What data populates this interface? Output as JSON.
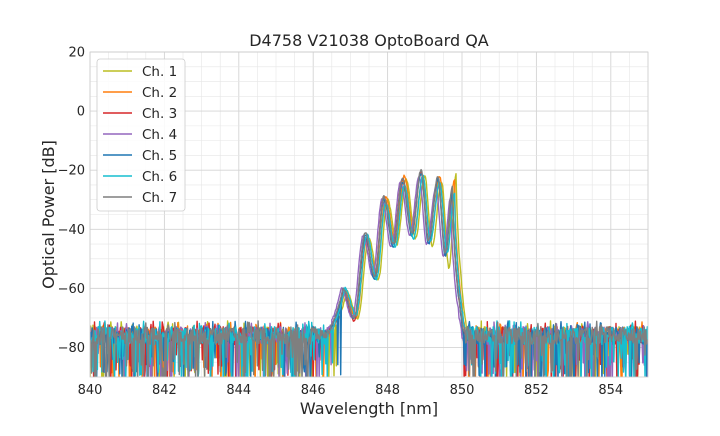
{
  "chart_data": {
    "type": "line",
    "title": "D4758 V21038 OptoBoard QA",
    "xlabel": "Wavelength [nm]",
    "ylabel": "Optical Power [dB]",
    "xlim": [
      840,
      855
    ],
    "ylim": [
      -90,
      20
    ],
    "x_ticks": [
      840,
      842,
      844,
      846,
      848,
      850,
      852,
      854
    ],
    "x_tick_labels": [
      "840",
      "842",
      "844",
      "846",
      "848",
      "850",
      "852",
      "854"
    ],
    "y_ticks": [
      20,
      0,
      -20,
      -40,
      -60,
      -80
    ],
    "y_tick_labels": [
      "20",
      "0",
      "−20",
      "−40",
      "−60",
      "−80"
    ],
    "grid": true,
    "grid_minor": true,
    "legend_position": "top-left",
    "noise_floor_db": -76,
    "series": [
      {
        "name": "Ch. 1",
        "color": "#bcbd22",
        "peaks": [
          {
            "x": 846.9,
            "y": -61
          },
          {
            "x": 847.5,
            "y": -43
          },
          {
            "x": 848.0,
            "y": -30
          },
          {
            "x": 848.5,
            "y": -23
          },
          {
            "x": 849.0,
            "y": -22
          },
          {
            "x": 849.45,
            "y": -24
          },
          {
            "x": 849.85,
            "y": -21
          }
        ],
        "dips": [
          {
            "x": 847.2,
            "y": -70
          },
          {
            "x": 847.75,
            "y": -57
          },
          {
            "x": 848.25,
            "y": -45
          },
          {
            "x": 848.75,
            "y": -43
          },
          {
            "x": 849.2,
            "y": -46
          },
          {
            "x": 849.65,
            "y": -53
          }
        ]
      },
      {
        "name": "Ch. 2",
        "color": "#ff7f0e",
        "peaks": [
          {
            "x": 846.85,
            "y": -61
          },
          {
            "x": 847.45,
            "y": -43
          },
          {
            "x": 847.95,
            "y": -29
          },
          {
            "x": 848.45,
            "y": -22
          },
          {
            "x": 848.95,
            "y": -22
          },
          {
            "x": 849.4,
            "y": -22
          },
          {
            "x": 849.8,
            "y": -23
          }
        ],
        "dips": [
          {
            "x": 847.15,
            "y": -70
          },
          {
            "x": 847.7,
            "y": -55
          },
          {
            "x": 848.2,
            "y": -44
          },
          {
            "x": 848.7,
            "y": -41
          },
          {
            "x": 849.15,
            "y": -44
          },
          {
            "x": 849.6,
            "y": -48
          }
        ]
      },
      {
        "name": "Ch. 3",
        "color": "#d62728",
        "peaks": [
          {
            "x": 846.8,
            "y": -61
          },
          {
            "x": 847.4,
            "y": -43
          },
          {
            "x": 847.9,
            "y": -29
          },
          {
            "x": 848.4,
            "y": -23
          },
          {
            "x": 848.9,
            "y": -21
          },
          {
            "x": 849.35,
            "y": -23
          },
          {
            "x": 849.75,
            "y": -26
          }
        ],
        "dips": [
          {
            "x": 847.1,
            "y": -71
          },
          {
            "x": 847.65,
            "y": -56
          },
          {
            "x": 848.15,
            "y": -44
          },
          {
            "x": 848.65,
            "y": -40
          },
          {
            "x": 849.1,
            "y": -43
          },
          {
            "x": 849.55,
            "y": -47
          }
        ]
      },
      {
        "name": "Ch. 4",
        "color": "#9467bd",
        "peaks": [
          {
            "x": 846.75,
            "y": -60
          },
          {
            "x": 847.35,
            "y": -42
          },
          {
            "x": 847.85,
            "y": -30
          },
          {
            "x": 848.35,
            "y": -24
          },
          {
            "x": 848.85,
            "y": -22
          },
          {
            "x": 849.3,
            "y": -26
          },
          {
            "x": 849.7,
            "y": -29
          }
        ],
        "dips": [
          {
            "x": 847.05,
            "y": -70
          },
          {
            "x": 847.6,
            "y": -56
          },
          {
            "x": 848.1,
            "y": -46
          },
          {
            "x": 848.6,
            "y": -42
          },
          {
            "x": 849.05,
            "y": -45
          },
          {
            "x": 849.5,
            "y": -49
          }
        ]
      },
      {
        "name": "Ch. 5",
        "color": "#1f77b4",
        "peaks": [
          {
            "x": 846.8,
            "y": -60
          },
          {
            "x": 847.4,
            "y": -42
          },
          {
            "x": 847.9,
            "y": -30
          },
          {
            "x": 848.4,
            "y": -24
          },
          {
            "x": 848.9,
            "y": -21
          },
          {
            "x": 849.35,
            "y": -23
          },
          {
            "x": 849.75,
            "y": -27
          }
        ],
        "dips": [
          {
            "x": 847.1,
            "y": -70
          },
          {
            "x": 847.65,
            "y": -57
          },
          {
            "x": 848.15,
            "y": -46
          },
          {
            "x": 848.65,
            "y": -42
          },
          {
            "x": 849.1,
            "y": -45
          },
          {
            "x": 849.55,
            "y": -49
          }
        ]
      },
      {
        "name": "Ch. 6",
        "color": "#17becf",
        "peaks": [
          {
            "x": 846.85,
            "y": -60
          },
          {
            "x": 847.45,
            "y": -42
          },
          {
            "x": 847.95,
            "y": -31
          },
          {
            "x": 848.45,
            "y": -25
          },
          {
            "x": 848.95,
            "y": -22
          },
          {
            "x": 849.4,
            "y": -24
          },
          {
            "x": 849.8,
            "y": -28
          }
        ],
        "dips": [
          {
            "x": 847.15,
            "y": -69
          },
          {
            "x": 847.7,
            "y": -57
          },
          {
            "x": 848.2,
            "y": -46
          },
          {
            "x": 848.7,
            "y": -43
          },
          {
            "x": 849.15,
            "y": -44
          },
          {
            "x": 849.6,
            "y": -48
          }
        ]
      },
      {
        "name": "Ch. 7",
        "color": "#7f7f7f",
        "peaks": [
          {
            "x": 846.8,
            "y": -60
          },
          {
            "x": 847.4,
            "y": -41
          },
          {
            "x": 847.9,
            "y": -29
          },
          {
            "x": 848.4,
            "y": -23
          },
          {
            "x": 848.9,
            "y": -20
          },
          {
            "x": 849.35,
            "y": -22
          },
          {
            "x": 849.75,
            "y": -25
          }
        ],
        "dips": [
          {
            "x": 847.1,
            "y": -70
          },
          {
            "x": 847.65,
            "y": -56
          },
          {
            "x": 848.15,
            "y": -45
          },
          {
            "x": 848.65,
            "y": -41
          },
          {
            "x": 849.1,
            "y": -44
          },
          {
            "x": 849.55,
            "y": -48
          }
        ]
      }
    ]
  }
}
